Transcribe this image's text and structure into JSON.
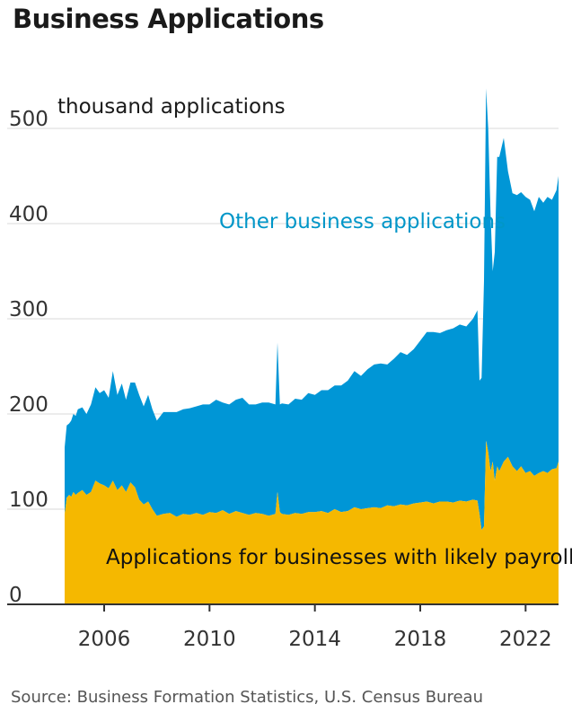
{
  "title": "Business Applications",
  "source": "Source: Business Formation Statistics, U.S. Census Bureau",
  "chart_data": {
    "type": "area",
    "stacked": true,
    "ylabel": "thousand applications",
    "ylim": [
      0,
      550
    ],
    "yticks": [
      0,
      100,
      200,
      300,
      400,
      500
    ],
    "xlim": [
      2004.5,
      2023.25
    ],
    "xticks": [
      2006,
      2010,
      2014,
      2018,
      2022
    ],
    "grid": true,
    "colors": {
      "payroll": "#f5b800",
      "other": "#0096d6",
      "grid": "#d9d9d9",
      "axis": "#333333",
      "other_label": "#0096c8"
    },
    "series": [
      {
        "name": "Applications for businesses with likely payroll",
        "x": [
          2004.5,
          2004.58,
          2004.67,
          2004.75,
          2004.83,
          2004.92,
          2005.0,
          2005.17,
          2005.33,
          2005.5,
          2005.67,
          2005.83,
          2006.0,
          2006.17,
          2006.33,
          2006.5,
          2006.67,
          2006.83,
          2007.0,
          2007.17,
          2007.33,
          2007.5,
          2007.67,
          2007.83,
          2008.0,
          2008.25,
          2008.5,
          2008.75,
          2009.0,
          2009.25,
          2009.5,
          2009.75,
          2010.0,
          2010.25,
          2010.5,
          2010.75,
          2011.0,
          2011.25,
          2011.5,
          2011.75,
          2012.0,
          2012.25,
          2012.5,
          2012.58,
          2012.67,
          2012.75,
          2013.0,
          2013.25,
          2013.5,
          2013.75,
          2014.0,
          2014.25,
          2014.5,
          2014.75,
          2015.0,
          2015.25,
          2015.5,
          2015.75,
          2016.0,
          2016.25,
          2016.5,
          2016.75,
          2017.0,
          2017.25,
          2017.5,
          2017.75,
          2018.0,
          2018.25,
          2018.5,
          2018.75,
          2019.0,
          2019.25,
          2019.5,
          2019.75,
          2020.0,
          2020.17,
          2020.25,
          2020.33,
          2020.42,
          2020.5,
          2020.58,
          2020.67,
          2020.75,
          2020.83,
          2020.92,
          2021.0,
          2021.17,
          2021.33,
          2021.5,
          2021.67,
          2021.83,
          2022.0,
          2022.17,
          2022.33,
          2022.5,
          2022.67,
          2022.83,
          2023.0,
          2023.17,
          2023.25
        ],
        "values": [
          95,
          112,
          115,
          113,
          118,
          115,
          117,
          120,
          115,
          118,
          130,
          127,
          125,
          122,
          130,
          120,
          125,
          118,
          128,
          123,
          110,
          105,
          108,
          100,
          93,
          95,
          96,
          92,
          95,
          94,
          96,
          94,
          97,
          96,
          99,
          95,
          98,
          96,
          94,
          96,
          95,
          93,
          95,
          118,
          97,
          95,
          94,
          96,
          95,
          97,
          97,
          98,
          96,
          100,
          97,
          98,
          102,
          100,
          101,
          102,
          101,
          104,
          103,
          105,
          104,
          106,
          107,
          108,
          106,
          108,
          108,
          107,
          109,
          108,
          110,
          109,
          95,
          78,
          82,
          172,
          160,
          140,
          150,
          130,
          145,
          140,
          150,
          155,
          145,
          140,
          145,
          138,
          140,
          135,
          138,
          140,
          138,
          142,
          143,
          150
        ]
      },
      {
        "name": "Other business applications",
        "x": [
          2004.5,
          2004.58,
          2004.67,
          2004.75,
          2004.83,
          2004.92,
          2005.0,
          2005.17,
          2005.33,
          2005.5,
          2005.67,
          2005.83,
          2006.0,
          2006.17,
          2006.33,
          2006.5,
          2006.67,
          2006.83,
          2007.0,
          2007.17,
          2007.33,
          2007.5,
          2007.67,
          2007.83,
          2008.0,
          2008.25,
          2008.5,
          2008.75,
          2009.0,
          2009.25,
          2009.5,
          2009.75,
          2010.0,
          2010.25,
          2010.5,
          2010.75,
          2011.0,
          2011.25,
          2011.5,
          2011.75,
          2012.0,
          2012.25,
          2012.5,
          2012.58,
          2012.67,
          2012.75,
          2013.0,
          2013.25,
          2013.5,
          2013.75,
          2014.0,
          2014.25,
          2014.5,
          2014.75,
          2015.0,
          2015.25,
          2015.5,
          2015.75,
          2016.0,
          2016.25,
          2016.5,
          2016.75,
          2017.0,
          2017.25,
          2017.5,
          2017.75,
          2018.0,
          2018.25,
          2018.5,
          2018.75,
          2019.0,
          2019.25,
          2019.5,
          2019.75,
          2020.0,
          2020.17,
          2020.25,
          2020.33,
          2020.42,
          2020.5,
          2020.58,
          2020.67,
          2020.75,
          2020.83,
          2020.92,
          2021.0,
          2021.17,
          2021.33,
          2021.5,
          2021.67,
          2021.83,
          2022.0,
          2022.17,
          2022.33,
          2022.5,
          2022.67,
          2022.83,
          2023.0,
          2023.17,
          2023.25
        ],
        "values": [
          70,
          76,
          75,
          80,
          82,
          83,
          88,
          87,
          85,
          92,
          98,
          95,
          100,
          95,
          115,
          100,
          107,
          97,
          105,
          110,
          110,
          103,
          112,
          105,
          100,
          107,
          106,
          110,
          110,
          112,
          112,
          116,
          113,
          119,
          113,
          115,
          117,
          121,
          116,
          114,
          117,
          119,
          115,
          157,
          113,
          116,
          116,
          120,
          120,
          125,
          123,
          127,
          129,
          130,
          133,
          137,
          143,
          140,
          146,
          150,
          152,
          148,
          155,
          160,
          158,
          162,
          170,
          178,
          180,
          177,
          180,
          183,
          185,
          184,
          190,
          200,
          140,
          160,
          258,
          370,
          340,
          270,
          200,
          240,
          325,
          330,
          340,
          300,
          287,
          290,
          288,
          290,
          285,
          278,
          290,
          282,
          290,
          283,
          292,
          300
        ]
      }
    ]
  },
  "labels": {
    "other": "Other business applications",
    "payroll": "Applications for businesses with likely payroll"
  }
}
